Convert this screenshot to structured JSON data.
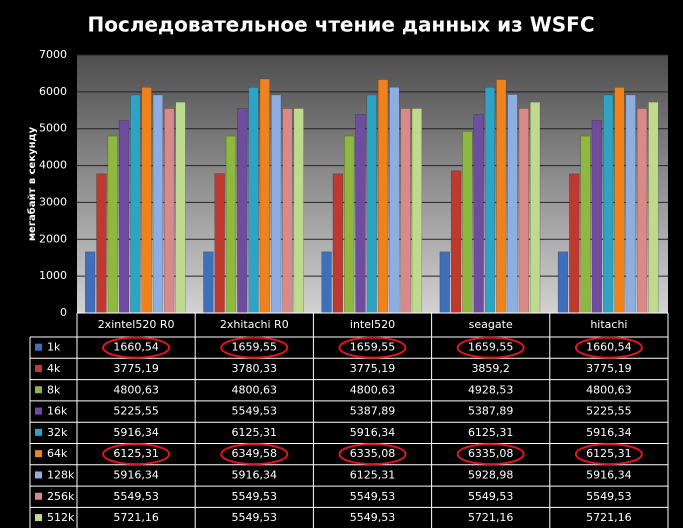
{
  "chart_data": {
    "type": "bar",
    "title": "Последовательное чтение данных  из WSFC",
    "y_label": "мегабайт в секунду",
    "categories": [
      "2xintel520 R0",
      "2xhitachi R0",
      "intel520",
      "seagate",
      "hitachi"
    ],
    "ylim": [
      0,
      7000
    ],
    "yticks": [
      0,
      1000,
      2000,
      3000,
      4000,
      5000,
      6000,
      7000
    ],
    "grid": true,
    "series": [
      {
        "name": "1k",
        "color": "#3f6fb8",
        "values": [
          1660.54,
          1659.55,
          1659.55,
          1659.55,
          1660.54
        ],
        "value_labels": [
          "1660,54",
          "1659,55",
          "1659,55",
          "1659,55",
          "1660,54"
        ]
      },
      {
        "name": "4k",
        "color": "#c0392f",
        "values": [
          3775.19,
          3780.33,
          3775.19,
          3859.2,
          3775.19
        ],
        "value_labels": [
          "3775,19",
          "3780,33",
          "3775,19",
          "3859,2",
          "3775,19"
        ]
      },
      {
        "name": "8k",
        "color": "#8fb841",
        "values": [
          4800.63,
          4800.63,
          4800.63,
          4928.53,
          4800.63
        ],
        "value_labels": [
          "4800,63",
          "4800,63",
          "4800,63",
          "4928,53",
          "4800,63"
        ]
      },
      {
        "name": "16k",
        "color": "#6e4c9e",
        "values": [
          5225.55,
          5549.53,
          5387.89,
          5387.89,
          5225.55
        ],
        "value_labels": [
          "5225,55",
          "5549,53",
          "5387,89",
          "5387,89",
          "5225,55"
        ]
      },
      {
        "name": "32k",
        "color": "#2fa3c4",
        "values": [
          5916.34,
          6125.31,
          5916.34,
          6125.31,
          5916.34
        ],
        "value_labels": [
          "5916,34",
          "6125,31",
          "5916,34",
          "6125,31",
          "5916,34"
        ]
      },
      {
        "name": "64k",
        "color": "#f0821e",
        "values": [
          6125.31,
          6349.58,
          6335.08,
          6335.08,
          6125.31
        ],
        "value_labels": [
          "6125,31",
          "6349,58",
          "6335,08",
          "6335,08",
          "6125,31"
        ]
      },
      {
        "name": "128k",
        "color": "#8eaee0",
        "values": [
          5916.34,
          5916.34,
          6125.31,
          5928.98,
          5916.34
        ],
        "value_labels": [
          "5916,34",
          "5916,34",
          "6125,31",
          "5928,98",
          "5916,34"
        ]
      },
      {
        "name": "256k",
        "color": "#d98a88",
        "values": [
          5549.53,
          5549.53,
          5549.53,
          5549.53,
          5549.53
        ],
        "value_labels": [
          "5549,53",
          "5549,53",
          "5549,53",
          "5549,53",
          "5549,53"
        ]
      },
      {
        "name": "512k",
        "color": "#bfd98f",
        "values": [
          5721.16,
          5549.53,
          5549.53,
          5721.16,
          5721.16
        ],
        "value_labels": [
          "5721,16",
          "5549,53",
          "5549,53",
          "5721,16",
          "5721,16"
        ]
      }
    ]
  }
}
